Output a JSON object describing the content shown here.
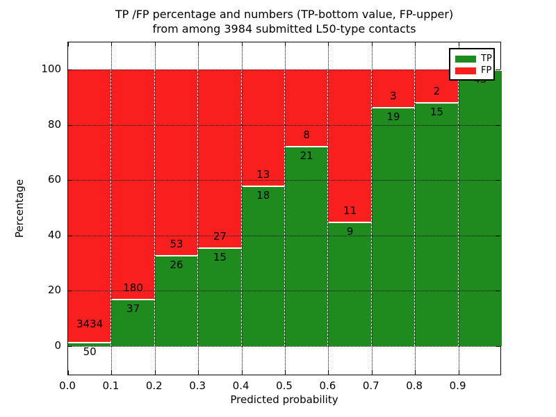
{
  "chart_data": {
    "type": "bar",
    "variant": "stacked-percentage",
    "title_line1": "TP /FP percentage and numbers (TP-bottom value, FP-upper)",
    "title_line2": "from among 3984 submitted L50-type contacts",
    "xlabel": "Predicted probability",
    "ylabel": "Percentage",
    "total_contacts": 3984,
    "x_tick_labels": [
      "0.0",
      "0.1",
      "0.2",
      "0.3",
      "0.4",
      "0.5",
      "0.6",
      "0.7",
      "0.8",
      "0.9"
    ],
    "y_tick_labels": [
      "0",
      "20",
      "40",
      "60",
      "80",
      "100"
    ],
    "y_tick_values": [
      0,
      20,
      40,
      60,
      80,
      100
    ],
    "xlim": [
      0.0,
      1.0
    ],
    "ylim": [
      -10.8,
      109.8
    ],
    "grid": "dotted black, both axes, drawn over bars",
    "legend": {
      "position": "upper right",
      "entries": [
        {
          "label": "TP",
          "color": "#1f8b1f"
        },
        {
          "label": "FP",
          "color": "#f91f1f"
        }
      ]
    },
    "colors": {
      "tp": "#1f8b1f",
      "fp": "#f91f1f",
      "bar_edge": "#ffffff",
      "grid": "#000000"
    },
    "bins": [
      "0.0-0.1",
      "0.1-0.2",
      "0.2-0.3",
      "0.3-0.4",
      "0.4-0.5",
      "0.5-0.6",
      "0.6-0.7",
      "0.7-0.8",
      "0.8-0.9",
      "0.9-1.0"
    ],
    "series": [
      {
        "name": "TP",
        "counts": [
          50,
          37,
          26,
          15,
          18,
          21,
          9,
          19,
          15,
          43
        ]
      },
      {
        "name": "FP",
        "counts": [
          3434,
          180,
          53,
          27,
          13,
          8,
          11,
          3,
          2,
          0
        ]
      }
    ],
    "bars": [
      {
        "bin_start": "0.0",
        "tp": 50,
        "fp": 3434,
        "tp_pct": 1.44,
        "tp_label": "50",
        "fp_label": "3434"
      },
      {
        "bin_start": "0.1",
        "tp": 37,
        "fp": 180,
        "tp_pct": 17.05,
        "tp_label": "37",
        "fp_label": "180"
      },
      {
        "bin_start": "0.2",
        "tp": 26,
        "fp": 53,
        "tp_pct": 32.91,
        "tp_label": "26",
        "fp_label": "53"
      },
      {
        "bin_start": "0.3",
        "tp": 15,
        "fp": 27,
        "tp_pct": 35.71,
        "tp_label": "15",
        "fp_label": "27"
      },
      {
        "bin_start": "0.4",
        "tp": 18,
        "fp": 13,
        "tp_pct": 58.06,
        "tp_label": "18",
        "fp_label": "13"
      },
      {
        "bin_start": "0.5",
        "tp": 21,
        "fp": 8,
        "tp_pct": 72.41,
        "tp_label": "21",
        "fp_label": "8"
      },
      {
        "bin_start": "0.6",
        "tp": 9,
        "fp": 11,
        "tp_pct": 45.0,
        "tp_label": "9",
        "fp_label": "11"
      },
      {
        "bin_start": "0.7",
        "tp": 19,
        "fp": 3,
        "tp_pct": 86.36,
        "tp_label": "19",
        "fp_label": "3"
      },
      {
        "bin_start": "0.8",
        "tp": 15,
        "fp": 2,
        "tp_pct": 88.24,
        "tp_label": "15",
        "fp_label": "2"
      },
      {
        "bin_start": "0.9",
        "tp": 43,
        "fp": 0,
        "tp_pct": 100.0,
        "tp_label": "43",
        "fp_label": ""
      }
    ]
  }
}
